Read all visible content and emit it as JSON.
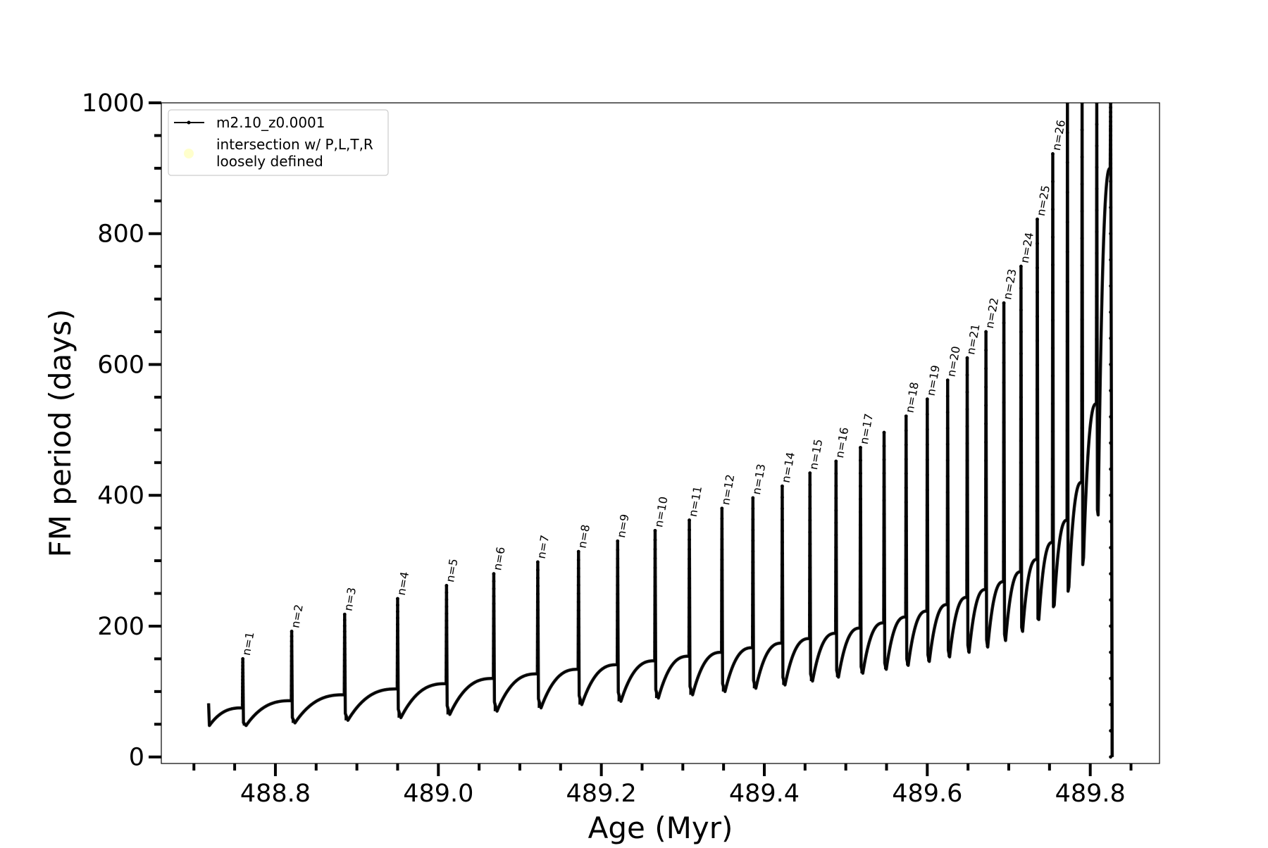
{
  "chart_data": {
    "type": "line",
    "title": "",
    "xlabel": "Age (Myr)",
    "ylabel": "FM period (days)",
    "xlim": [
      488.66,
      489.885
    ],
    "ylim": [
      -10,
      1000
    ],
    "x_ticks": [
      488.8,
      489.0,
      489.2,
      489.4,
      489.6,
      489.8
    ],
    "x_tick_labels": [
      "488.8",
      "489.0",
      "489.2",
      "489.4",
      "489.6",
      "489.8"
    ],
    "y_ticks": [
      0,
      200,
      400,
      600,
      800,
      1000
    ],
    "y_tick_labels": [
      "0",
      "200",
      "400",
      "600",
      "800",
      "1000"
    ],
    "x_minor_step": 0.05,
    "y_minor_step": 50,
    "grid": false,
    "legend_position": "top-left",
    "legend": [
      {
        "label": "m2.10_z0.0001",
        "marker": "line-with-dots",
        "color": "#000000"
      },
      {
        "label": "intersection w/ P,L,T,R\nloosely defined",
        "marker": "circle",
        "color": "#ffffcc"
      }
    ],
    "series": [
      {
        "name": "m2.10_z0.0001",
        "color": "#000000",
        "start": {
          "x": 488.718,
          "y": 82
        },
        "pulses": [
          {
            "label": "n=1",
            "x": 488.76,
            "peak": 150,
            "before": 75,
            "min": 48
          },
          {
            "label": "n=2",
            "x": 488.82,
            "peak": 192,
            "before": 86,
            "min": 52
          },
          {
            "label": "n=3",
            "x": 488.885,
            "peak": 218,
            "before": 95,
            "min": 56
          },
          {
            "label": "n=4",
            "x": 488.95,
            "peak": 242,
            "before": 104,
            "min": 60
          },
          {
            "label": "n=5",
            "x": 489.01,
            "peak": 262,
            "before": 112,
            "min": 65
          },
          {
            "label": "n=6",
            "x": 489.068,
            "peak": 280,
            "before": 120,
            "min": 70
          },
          {
            "label": "n=7",
            "x": 489.122,
            "peak": 298,
            "before": 127,
            "min": 75
          },
          {
            "label": "n=8",
            "x": 489.172,
            "peak": 314,
            "before": 134,
            "min": 80
          },
          {
            "label": "n=9",
            "x": 489.22,
            "peak": 330,
            "before": 141,
            "min": 85
          },
          {
            "label": "n=10",
            "x": 489.266,
            "peak": 346,
            "before": 147,
            "min": 90
          },
          {
            "label": "n=11",
            "x": 489.308,
            "peak": 362,
            "before": 154,
            "min": 95
          },
          {
            "label": "n=12",
            "x": 489.348,
            "peak": 380,
            "before": 160,
            "min": 100
          },
          {
            "label": "n=13",
            "x": 489.386,
            "peak": 396,
            "before": 167,
            "min": 105
          },
          {
            "label": "n=14",
            "x": 489.422,
            "peak": 414,
            "before": 174,
            "min": 110
          },
          {
            "label": "n=15",
            "x": 489.456,
            "peak": 434,
            "before": 181,
            "min": 116
          },
          {
            "label": "n=16",
            "x": 489.488,
            "peak": 452,
            "before": 189,
            "min": 122
          },
          {
            "label": "n=17",
            "x": 489.518,
            "peak": 473,
            "before": 197,
            "min": 128
          },
          {
            "label": "",
            "x": 489.547,
            "peak": 496,
            "before": 205,
            "min": 134
          },
          {
            "label": "n=18",
            "x": 489.574,
            "peak": 521,
            "before": 214,
            "min": 140
          },
          {
            "label": "n=19",
            "x": 489.6,
            "peak": 547,
            "before": 223,
            "min": 146
          },
          {
            "label": "n=20",
            "x": 489.625,
            "peak": 576,
            "before": 233,
            "min": 153
          },
          {
            "label": "n=21",
            "x": 489.649,
            "peak": 610,
            "before": 244,
            "min": 160
          },
          {
            "label": "n=22",
            "x": 489.672,
            "peak": 650,
            "before": 256,
            "min": 168
          },
          {
            "label": "n=23",
            "x": 489.694,
            "peak": 694,
            "before": 268,
            "min": 178
          },
          {
            "label": "n=24",
            "x": 489.715,
            "peak": 750,
            "before": 283,
            "min": 192
          },
          {
            "label": "n=25",
            "x": 489.735,
            "peak": 822,
            "before": 302,
            "min": 210
          },
          {
            "label": "n=26",
            "x": 489.754,
            "peak": 922,
            "before": 328,
            "min": 232
          },
          {
            "label": "",
            "x": 489.772,
            "peak": 1000,
            "before": 362,
            "min": 260
          },
          {
            "label": "",
            "x": 489.79,
            "peak": 1000,
            "before": 420,
            "min": 305
          },
          {
            "label": "",
            "x": 489.808,
            "peak": 1000,
            "before": 540,
            "min": 370
          },
          {
            "label": "",
            "x": 489.825,
            "peak": 1000,
            "before": 900,
            "min": 0
          }
        ]
      }
    ]
  }
}
